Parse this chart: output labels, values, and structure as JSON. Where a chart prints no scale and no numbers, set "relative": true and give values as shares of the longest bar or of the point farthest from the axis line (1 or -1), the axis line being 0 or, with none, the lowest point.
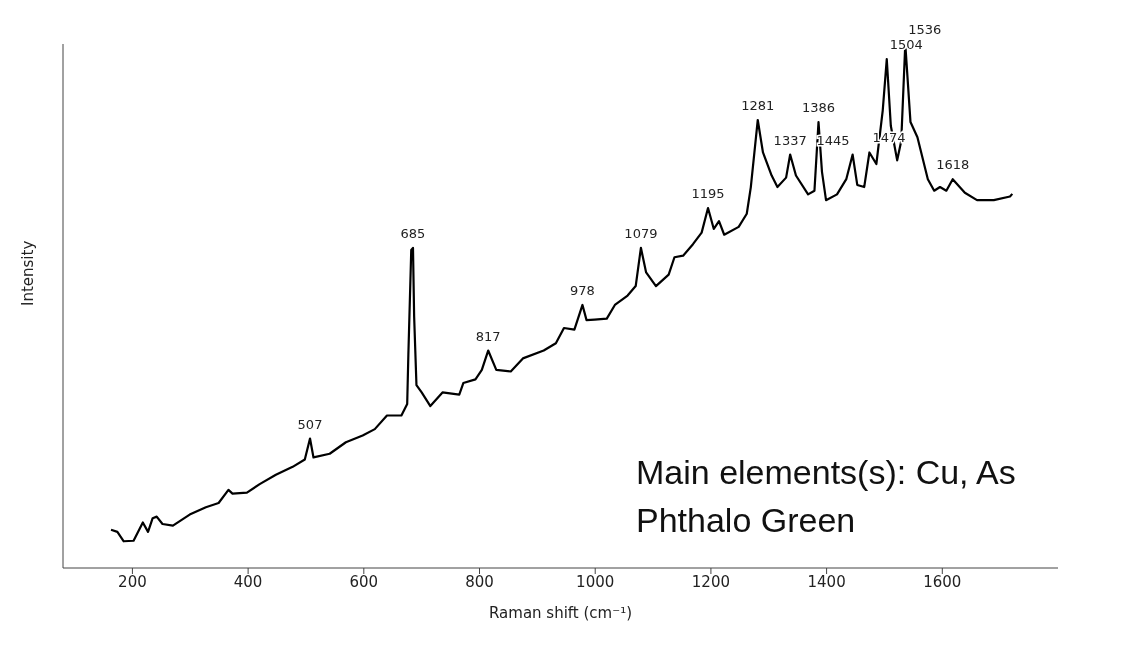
{
  "chart_data": {
    "type": "line",
    "xlabel": "Raman shift (cm⁻¹)",
    "ylabel": "Intensity",
    "relative": true,
    "color": "#000000",
    "marker": "none",
    "line_style": "solid",
    "grid": false,
    "legend": false,
    "tick_labels": "x",
    "xlim": [
      80,
      1800
    ],
    "xticks": [
      200,
      400,
      600,
      800,
      1000,
      1200,
      1400,
      1600
    ],
    "x": [
      163,
      174,
      185,
      202,
      218,
      227,
      235,
      242,
      252,
      270,
      299,
      327,
      349,
      366,
      373,
      398,
      420,
      448,
      477,
      498,
      507,
      513,
      541,
      569,
      598,
      619,
      640,
      665,
      675,
      677,
      682,
      685,
      687,
      691,
      700,
      715,
      736,
      765,
      772,
      793,
      804,
      815,
      829,
      854,
      875,
      911,
      932,
      946,
      964,
      978,
      985,
      999,
      1020,
      1034,
      1056,
      1070,
      1079,
      1088,
      1105,
      1127,
      1137,
      1152,
      1169,
      1184,
      1195,
      1205,
      1214,
      1223,
      1248,
      1262,
      1269,
      1281,
      1290,
      1305,
      1315,
      1330,
      1337,
      1347,
      1368,
      1379,
      1386,
      1392,
      1399,
      1418,
      1434,
      1445,
      1453,
      1465,
      1474,
      1486,
      1497,
      1504,
      1511,
      1522,
      1529,
      1536,
      1545,
      1557,
      1575,
      1586,
      1596,
      1607,
      1618,
      1639,
      1660,
      1689,
      1717,
      1721
    ],
    "values": [
      0.073,
      0.069,
      0.051,
      0.052,
      0.087,
      0.069,
      0.095,
      0.098,
      0.084,
      0.081,
      0.102,
      0.116,
      0.124,
      0.149,
      0.142,
      0.144,
      0.16,
      0.178,
      0.193,
      0.207,
      0.247,
      0.211,
      0.218,
      0.24,
      0.253,
      0.265,
      0.291,
      0.291,
      0.313,
      0.407,
      0.607,
      0.611,
      0.48,
      0.349,
      0.335,
      0.309,
      0.335,
      0.331,
      0.353,
      0.36,
      0.378,
      0.415,
      0.378,
      0.375,
      0.4,
      0.415,
      0.429,
      0.458,
      0.455,
      0.502,
      0.473,
      0.474,
      0.476,
      0.502,
      0.52,
      0.538,
      0.611,
      0.564,
      0.538,
      0.56,
      0.593,
      0.596,
      0.618,
      0.64,
      0.687,
      0.647,
      0.662,
      0.636,
      0.651,
      0.676,
      0.727,
      0.855,
      0.793,
      0.749,
      0.727,
      0.745,
      0.789,
      0.749,
      0.713,
      0.72,
      0.851,
      0.756,
      0.702,
      0.713,
      0.742,
      0.789,
      0.731,
      0.727,
      0.793,
      0.771,
      0.873,
      0.971,
      0.844,
      0.778,
      0.815,
      1,
      0.851,
      0.822,
      0.742,
      0.72,
      0.727,
      0.72,
      0.742,
      0.716,
      0.702,
      0.702,
      0.709,
      0.714
    ],
    "annotations": [
      {
        "text": "507",
        "x": 507,
        "y": 0.247
      },
      {
        "text": "685",
        "x": 685,
        "y": 0.611
      },
      {
        "text": "817",
        "x": 815,
        "y": 0.415
      },
      {
        "text": "978",
        "x": 978,
        "y": 0.502
      },
      {
        "text": "1079",
        "x": 1079,
        "y": 0.611
      },
      {
        "text": "1195",
        "x": 1195,
        "y": 0.687
      },
      {
        "text": "1281",
        "x": 1281,
        "y": 0.855
      },
      {
        "text": "1337",
        "x": 1337,
        "y": 0.789
      },
      {
        "text": "1386",
        "x": 1386,
        "y": 0.851
      },
      {
        "text": "1445",
        "x": 1445,
        "y": 0.789
      },
      {
        "text": "1474",
        "x": 1474,
        "y": 0.793
      },
      {
        "text": "1504",
        "x": 1504,
        "y": 0.971
      },
      {
        "text": "1536",
        "x": 1536,
        "y": 1
      },
      {
        "text": "1618",
        "x": 1618,
        "y": 0.742
      },
      "Main elements(s): Cu, As",
      "Phthalo Green"
    ]
  }
}
